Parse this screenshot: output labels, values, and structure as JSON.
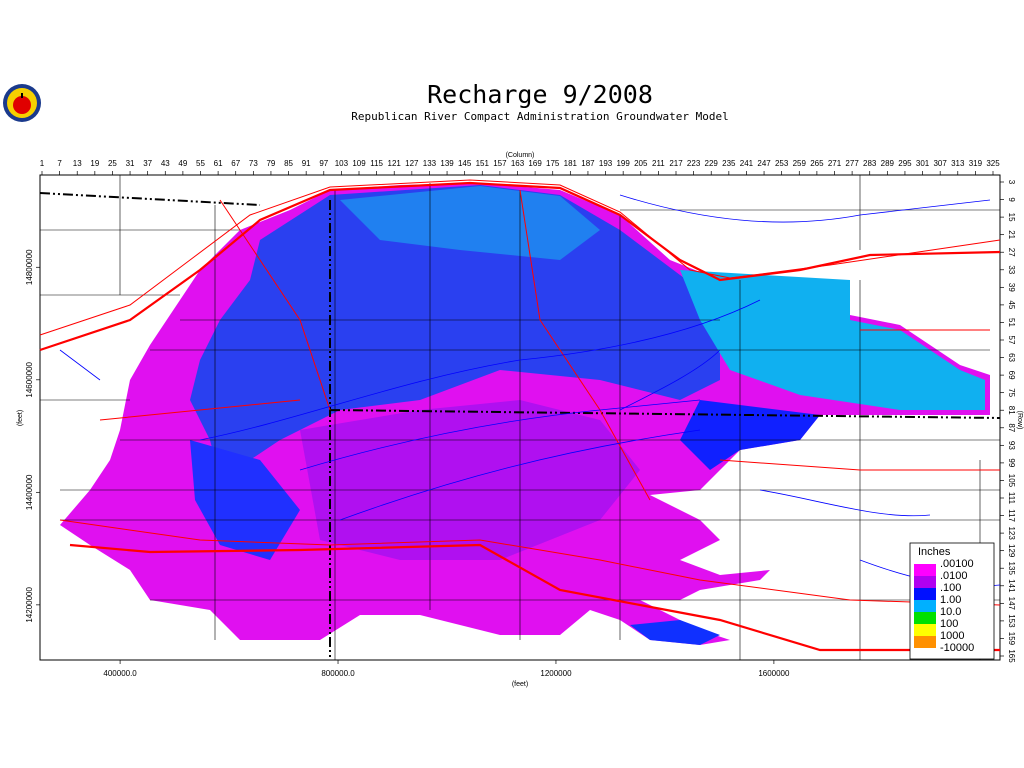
{
  "header": {
    "title": "Recharge 9/2008",
    "subtitle": "Republican River Compact Administration Groundwater Model"
  },
  "map": {
    "column_label": "(Column)",
    "row_label": "(Row)",
    "x_label": "(feet)",
    "y_label": "(feet)",
    "column_ticks": [
      1,
      7,
      13,
      19,
      25,
      31,
      37,
      43,
      49,
      55,
      61,
      67,
      73,
      79,
      85,
      91,
      97,
      103,
      109,
      115,
      121,
      127,
      133,
      139,
      145,
      151,
      157,
      163,
      169,
      175,
      181,
      187,
      193,
      199,
      205,
      211,
      217,
      223,
      229,
      235,
      241,
      247,
      253,
      259,
      265,
      271,
      277,
      283,
      289,
      295,
      301,
      307,
      313,
      319,
      325
    ],
    "row_ticks": [
      3,
      9,
      15,
      21,
      27,
      33,
      39,
      45,
      51,
      57,
      63,
      69,
      75,
      81,
      87,
      93,
      99,
      105,
      111,
      117,
      123,
      129,
      135,
      141,
      147,
      153,
      159,
      165
    ],
    "xlim": [
      253000,
      2015000
    ],
    "xticks": [
      {
        "value": 400000,
        "label": "400000.0"
      },
      {
        "value": 800000,
        "label": "800000.0"
      },
      1200000,
      1600000
    ],
    "ylim": [
      14102000,
      14964000
    ],
    "yticks": [
      14200000,
      14400000,
      14600000,
      14800000
    ]
  },
  "legend": {
    "title": "Inches",
    "labels": [
      ".00100",
      ".0100",
      ".100",
      "1.00",
      "10.0",
      "100",
      "1000",
      "-10000"
    ],
    "colors": [
      "#ff00ff",
      "#b000f0",
      "#0010ff",
      "#00b0ff",
      "#00e000",
      "#ffff00",
      "#ff9000"
    ]
  }
}
